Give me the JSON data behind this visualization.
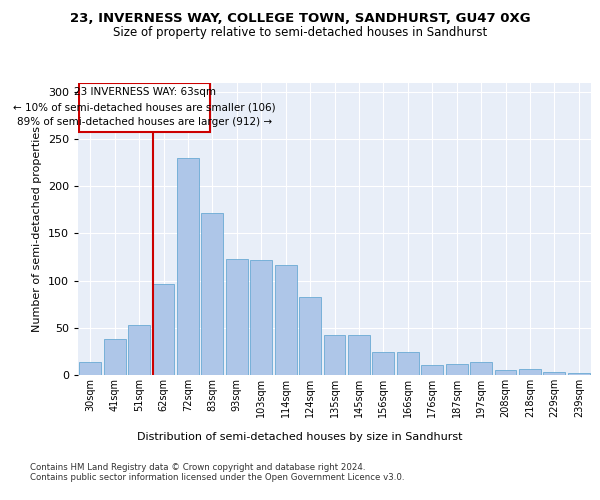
{
  "title1": "23, INVERNESS WAY, COLLEGE TOWN, SANDHURST, GU47 0XG",
  "title2": "Size of property relative to semi-detached houses in Sandhurst",
  "xlabel": "Distribution of semi-detached houses by size in Sandhurst",
  "ylabel": "Number of semi-detached properties",
  "categories": [
    "30sqm",
    "41sqm",
    "51sqm",
    "62sqm",
    "72sqm",
    "83sqm",
    "93sqm",
    "103sqm",
    "114sqm",
    "124sqm",
    "135sqm",
    "145sqm",
    "156sqm",
    "166sqm",
    "176sqm",
    "187sqm",
    "197sqm",
    "208sqm",
    "218sqm",
    "229sqm",
    "239sqm"
  ],
  "values": [
    14,
    38,
    53,
    96,
    230,
    172,
    123,
    122,
    117,
    83,
    42,
    42,
    24,
    24,
    11,
    12,
    14,
    5,
    6,
    3,
    2
  ],
  "bar_color": "#aec6e8",
  "bar_edge_color": "#6aaad4",
  "annotation_text": "23 INVERNESS WAY: 63sqm\n← 10% of semi-detached houses are smaller (106)\n89% of semi-detached houses are larger (912) →",
  "vline_color": "#cc0000",
  "box_color": "#cc0000",
  "ylim": [
    0,
    310
  ],
  "yticks": [
    0,
    50,
    100,
    150,
    200,
    250,
    300
  ],
  "footer": "Contains HM Land Registry data © Crown copyright and database right 2024.\nContains public sector information licensed under the Open Government Licence v3.0.",
  "bg_color": "#e8eef8"
}
